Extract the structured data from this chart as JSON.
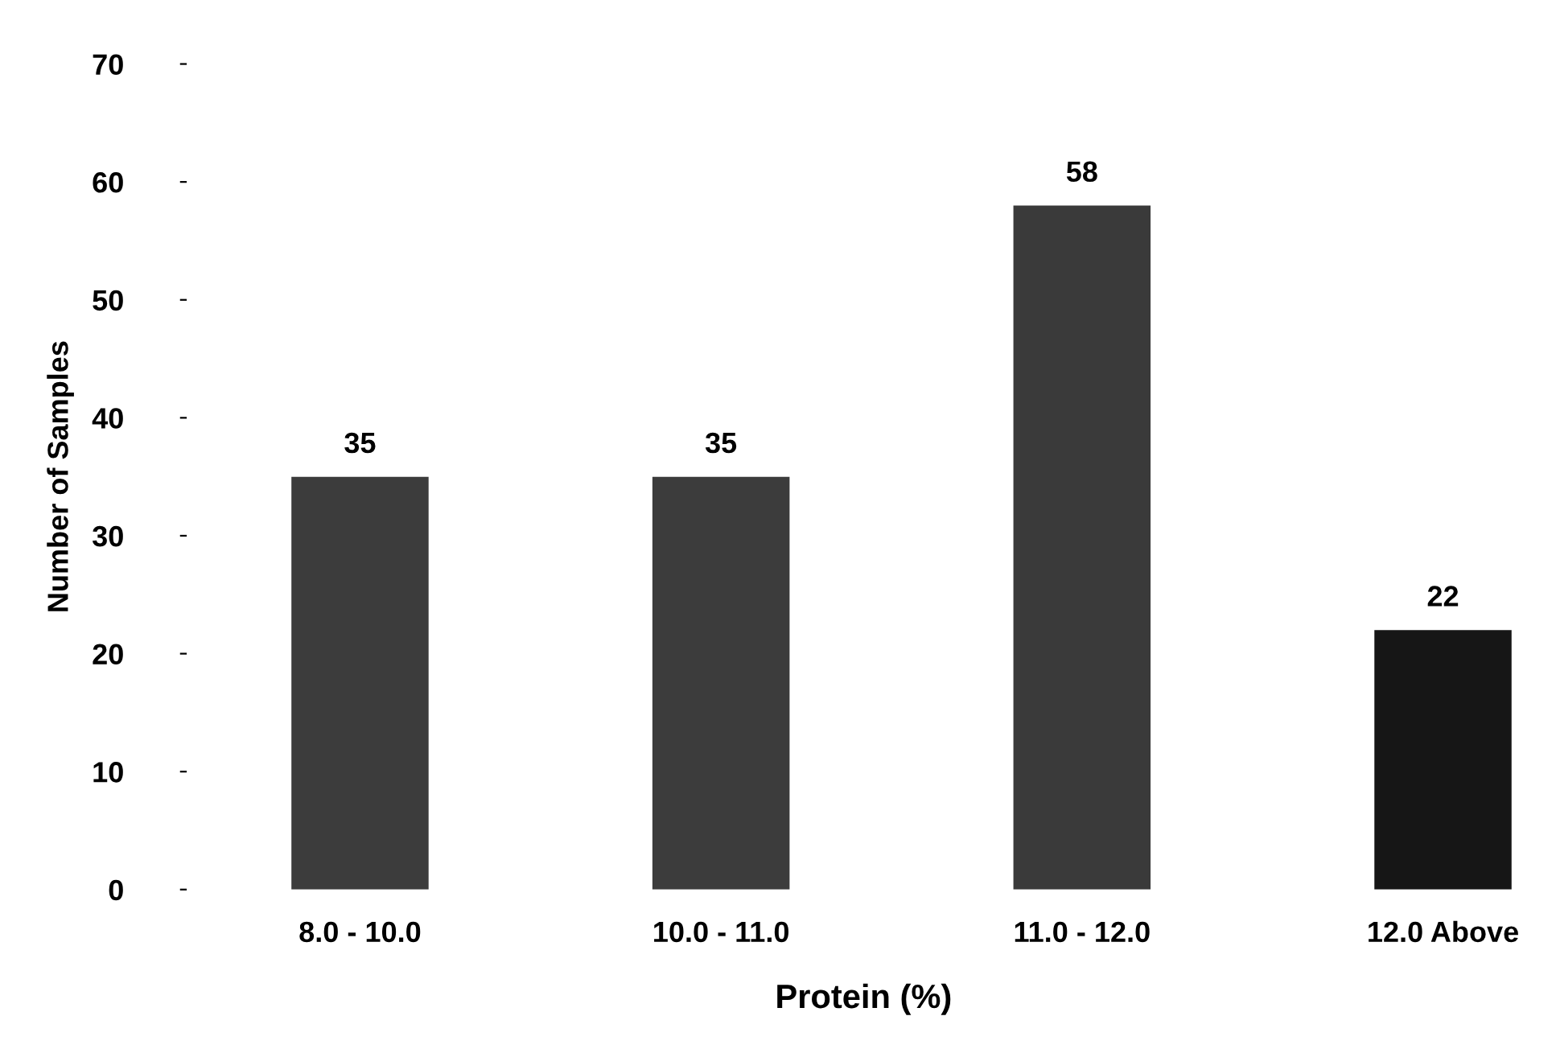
{
  "chart_data": {
    "type": "bar",
    "xlabel": "Protein (%)",
    "ylabel": "Number of Samples",
    "categories": [
      "8.0 - 10.0",
      "10.0 - 11.0",
      "11.0 - 12.0",
      "12.0 Above"
    ],
    "values": [
      35,
      35,
      58,
      22
    ],
    "colors": [
      "#3c3c3c",
      "#3c3c3c",
      "#3a3a3a",
      "#161616"
    ],
    "ylim": [
      0,
      70
    ],
    "yticks": [
      0,
      10,
      20,
      30,
      40,
      50,
      60,
      70
    ],
    "grid": false,
    "data_labels": true
  }
}
